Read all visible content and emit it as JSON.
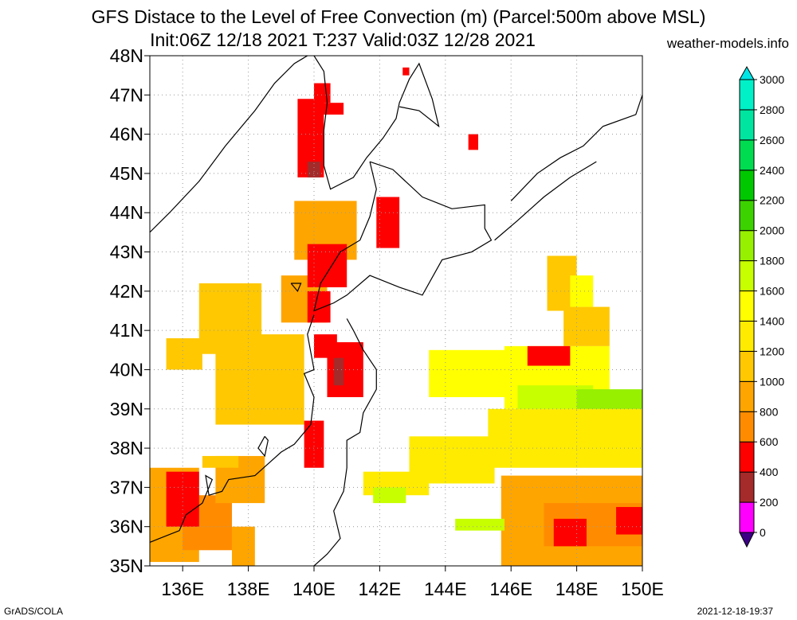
{
  "title": {
    "line1": "GFS Distace to the Level of Free Convection (m) (Parcel:500m above MSL)",
    "line2": "Init:06Z 12/18 2021 T:237 Valid:03Z 12/28 2021"
  },
  "site": "weather-models.info",
  "footer": {
    "left": "GrADS/COLA",
    "right": "2021-12-18-19:37"
  },
  "chart_data": {
    "type": "heatmap",
    "variable": "Distance to the Level of Free Convection",
    "units": "m",
    "x_range": [
      135,
      150
    ],
    "y_range": [
      35,
      48
    ],
    "x_ticks": [
      136,
      138,
      140,
      142,
      144,
      146,
      148,
      150
    ],
    "x_tick_labels": [
      "136E",
      "138E",
      "140E",
      "142E",
      "144E",
      "146E",
      "148E",
      "150E"
    ],
    "y_ticks": [
      35,
      36,
      37,
      38,
      39,
      40,
      41,
      42,
      43,
      44,
      45,
      46,
      47,
      48
    ],
    "y_tick_labels": [
      "35N",
      "36N",
      "37N",
      "38N",
      "39N",
      "40N",
      "41N",
      "42N",
      "43N",
      "44N",
      "45N",
      "46N",
      "47N",
      "48N"
    ],
    "grid": true,
    "colorbar": {
      "placement": "right",
      "levels": [
        0,
        200,
        400,
        600,
        800,
        1000,
        1200,
        1400,
        1600,
        1800,
        2000,
        2200,
        2400,
        2600,
        2800,
        3000
      ],
      "labels": [
        "0",
        "200",
        "400",
        "600",
        "800",
        "1000",
        "1200",
        "1400",
        "1600",
        "1800",
        "2000",
        "2200",
        "2400",
        "2600",
        "2800",
        "3000"
      ],
      "colors": [
        "#3c0087",
        "#ff00ff",
        "#a52a2a",
        "#ff0000",
        "#ff8c00",
        "#ffa500",
        "#ffc800",
        "#ffeb00",
        "#ffff00",
        "#c8ff00",
        "#96f000",
        "#3cd200",
        "#00c800",
        "#00dc50",
        "#00e6a0",
        "#00f0c8",
        "#00e6e6"
      ]
    },
    "regions": [
      {
        "lon": [
          135.0,
          136.5
        ],
        "lat": [
          35.1,
          37.5
        ],
        "value": 900
      },
      {
        "lon": [
          136.0,
          137.5
        ],
        "lat": [
          35.4,
          36.8
        ],
        "value": 750
      },
      {
        "lon": [
          135.5,
          136.5
        ],
        "lat": [
          36.0,
          37.4
        ],
        "value": 500
      },
      {
        "lon": [
          137.5,
          138.2
        ],
        "lat": [
          35.0,
          36.0
        ],
        "value": 800
      },
      {
        "lon": [
          137.0,
          138.5
        ],
        "lat": [
          36.6,
          37.8
        ],
        "value": 900
      },
      {
        "lon": [
          136.6,
          137.7
        ],
        "lat": [
          37.5,
          37.8
        ],
        "value": 1000
      },
      {
        "lon": [
          136.5,
          138.4
        ],
        "lat": [
          40.4,
          42.2
        ],
        "value": 1000
      },
      {
        "lon": [
          135.5,
          136.6
        ],
        "lat": [
          40.0,
          40.8
        ],
        "value": 1000
      },
      {
        "lon": [
          137.0,
          139.7
        ],
        "lat": [
          38.6,
          40.9
        ],
        "value": 1000
      },
      {
        "lon": [
          139.0,
          140.4
        ],
        "lat": [
          41.2,
          42.4
        ],
        "value": 900
      },
      {
        "lon": [
          139.4,
          141.3
        ],
        "lat": [
          42.8,
          44.3
        ],
        "value": 900
      },
      {
        "lon": [
          139.5,
          140.3
        ],
        "lat": [
          44.9,
          46.9
        ],
        "value": 400
      },
      {
        "lon": [
          140.0,
          140.5
        ],
        "lat": [
          46.8,
          47.3
        ],
        "value": 400
      },
      {
        "lon": [
          140.2,
          140.9
        ],
        "lat": [
          46.5,
          46.8
        ],
        "value": 400
      },
      {
        "lon": [
          139.8,
          140.2
        ],
        "lat": [
          44.9,
          45.3
        ],
        "value": 200
      },
      {
        "lon": [
          139.8,
          141.0
        ],
        "lat": [
          42.1,
          43.2
        ],
        "value": 400
      },
      {
        "lon": [
          139.8,
          140.5
        ],
        "lat": [
          41.2,
          42.0
        ],
        "value": 400
      },
      {
        "lon": [
          140.4,
          141.5
        ],
        "lat": [
          39.3,
          40.7
        ],
        "value": 400
      },
      {
        "lon": [
          140.6,
          140.9
        ],
        "lat": [
          39.6,
          40.3
        ],
        "value": 200
      },
      {
        "lon": [
          140.0,
          140.7
        ],
        "lat": [
          40.3,
          40.9
        ],
        "value": 500
      },
      {
        "lon": [
          139.7,
          140.3
        ],
        "lat": [
          37.5,
          38.7
        ],
        "value": 500
      },
      {
        "lon": [
          141.9,
          142.6
        ],
        "lat": [
          43.1,
          44.4
        ],
        "value": 400
      },
      {
        "lon": [
          142.7,
          142.9
        ],
        "lat": [
          47.5,
          47.7
        ],
        "value": 400
      },
      {
        "lon": [
          144.7,
          145.0
        ],
        "lat": [
          45.6,
          46.0
        ],
        "value": 500
      },
      {
        "lon": [
          141.5,
          143.5
        ],
        "lat": [
          36.8,
          37.4
        ],
        "value": 1300
      },
      {
        "lon": [
          141.8,
          142.8
        ],
        "lat": [
          36.6,
          37.0
        ],
        "value": 1700
      },
      {
        "lon": [
          142.9,
          145.5
        ],
        "lat": [
          37.1,
          38.3
        ],
        "value": 1200
      },
      {
        "lon": [
          143.5,
          146.2
        ],
        "lat": [
          39.3,
          40.5
        ],
        "value": 1400
      },
      {
        "lon": [
          145.8,
          149.0
        ],
        "lat": [
          39.0,
          40.6
        ],
        "value": 1500
      },
      {
        "lon": [
          146.2,
          148.5
        ],
        "lat": [
          38.6,
          39.6
        ],
        "value": 1600
      },
      {
        "lon": [
          148.0,
          150.0
        ],
        "lat": [
          38.4,
          39.5
        ],
        "value": 1800
      },
      {
        "lon": [
          145.3,
          150.0
        ],
        "lat": [
          37.5,
          39.0
        ],
        "value": 1200
      },
      {
        "lon": [
          147.1,
          148.0
        ],
        "lat": [
          41.5,
          42.9
        ],
        "value": 1100
      },
      {
        "lon": [
          147.6,
          149.0
        ],
        "lat": [
          40.6,
          41.6
        ],
        "value": 1000
      },
      {
        "lon": [
          147.8,
          148.5
        ],
        "lat": [
          41.6,
          42.4
        ],
        "value": 1500
      },
      {
        "lon": [
          146.5,
          147.8
        ],
        "lat": [
          40.1,
          40.6
        ],
        "value": 400
      },
      {
        "lon": [
          145.7,
          150.0
        ],
        "lat": [
          35.0,
          37.3
        ],
        "value": 900
      },
      {
        "lon": [
          147.0,
          150.0
        ],
        "lat": [
          35.5,
          36.6
        ],
        "value": 600
      },
      {
        "lon": [
          147.3,
          148.3
        ],
        "lat": [
          35.5,
          36.2
        ],
        "value": 400
      },
      {
        "lon": [
          149.2,
          150.0
        ],
        "lat": [
          35.8,
          36.5
        ],
        "value": 400
      },
      {
        "lon": [
          144.3,
          145.8
        ],
        "lat": [
          35.9,
          36.2
        ],
        "value": 1600
      }
    ]
  }
}
